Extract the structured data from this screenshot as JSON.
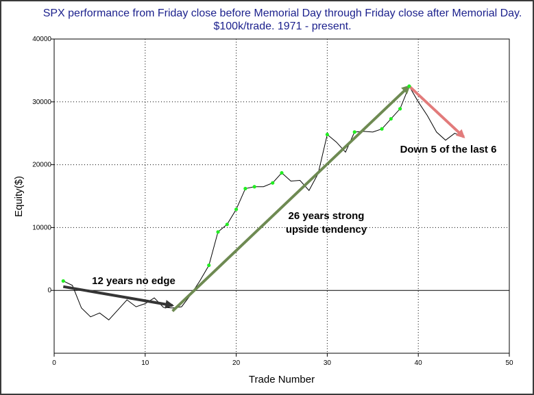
{
  "chart_data": {
    "type": "line",
    "title_line1": "SPX performance from Friday close before Memorial Day through Friday close after Memorial Day.",
    "title_line2": "$100k/trade. 1971 - present.",
    "xlabel": "Trade Number",
    "ylabel": "Equity($)",
    "xlim": [
      0,
      50
    ],
    "ylim": [
      -10000,
      40000
    ],
    "x_ticks": [
      0,
      10,
      20,
      30,
      40,
      50
    ],
    "y_ticks": [
      0,
      10000,
      20000,
      30000,
      40000
    ],
    "grid": "dotted",
    "series": [
      {
        "x": [
          1,
          2,
          3,
          4,
          5,
          6,
          7,
          8,
          9,
          10,
          11,
          12,
          13,
          14,
          15,
          16,
          17,
          18,
          19,
          20,
          21,
          22,
          23,
          24,
          25,
          26,
          27,
          28,
          29,
          30,
          31,
          32,
          33,
          34,
          35,
          36,
          37,
          38,
          39,
          40,
          41,
          42,
          43,
          44,
          45
        ],
        "y": [
          1500,
          800,
          -2800,
          -4200,
          -3600,
          -4700,
          -3100,
          -1500,
          -2600,
          -2100,
          -1200,
          -2700,
          -2800,
          -2600,
          -700,
          1500,
          4000,
          9300,
          10500,
          12900,
          16200,
          16500,
          16500,
          17100,
          18700,
          17400,
          17500,
          15900,
          18600,
          24800,
          23600,
          22000,
          25200,
          25300,
          25200,
          25700,
          27300,
          28900,
          32500,
          30000,
          27800,
          25200,
          23900,
          25000,
          24400
        ],
        "markers": [
          1,
          17,
          18,
          19,
          20,
          21,
          22,
          24,
          25,
          30,
          33,
          36,
          37,
          38,
          39
        ]
      }
    ],
    "annotations": [
      {
        "text": "12 years no edge",
        "arrow_from": [
          1,
          600
        ],
        "arrow_to": [
          13,
          -2400
        ],
        "color": "#353535"
      },
      {
        "text_line1": "26 years strong",
        "text_line2": "upside tendency",
        "arrow_from": [
          13,
          -3300
        ],
        "arrow_to": [
          39,
          32500
        ],
        "color": "#6e8a52"
      },
      {
        "text": "Down 5 of the last 6",
        "arrow_from": [
          39,
          32500
        ],
        "arrow_to": [
          45,
          24400
        ],
        "color": "#e27b7b"
      }
    ]
  }
}
